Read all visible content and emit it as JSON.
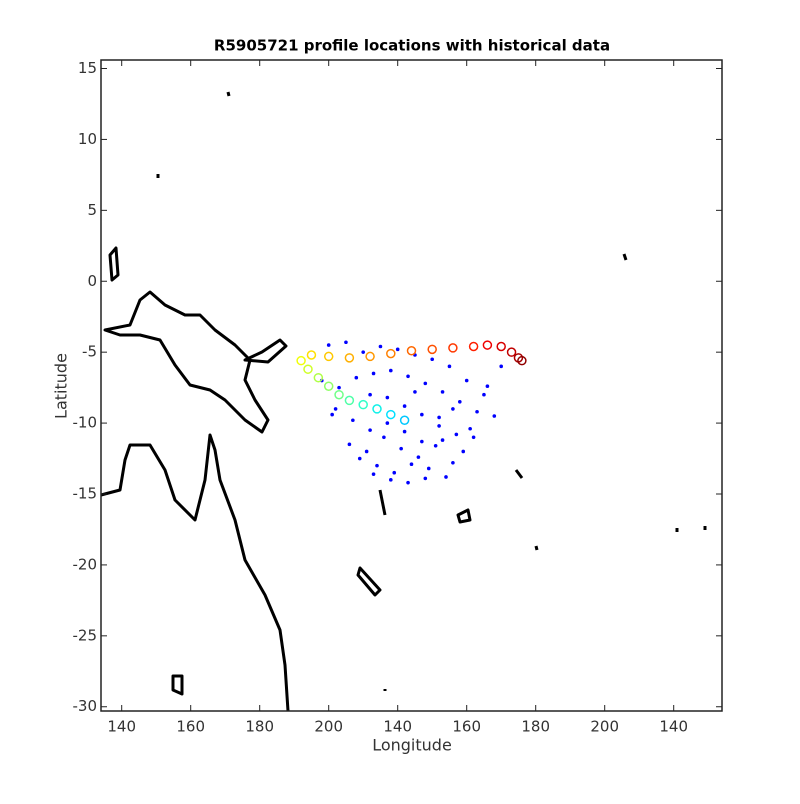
{
  "chart_data": {
    "type": "scatter",
    "title": "R5905721 profile locations with historical data",
    "x_label": "Longitude",
    "y_label": "Latitude",
    "xlim": [
      134,
      314
    ],
    "ylim": [
      -30.3,
      15.6
    ],
    "xticks": [
      140,
      160,
      180,
      200,
      {
        "value": 220,
        "label": "140"
      },
      {
        "value": 240,
        "label": "160"
      },
      {
        "value": 260,
        "label": "180"
      },
      {
        "value": 280,
        "label": "200"
      },
      {
        "value": 300,
        "label": "140"
      }
    ],
    "yticks": [
      -30,
      -25,
      -20,
      -15,
      -10,
      -5,
      0,
      5,
      10,
      15
    ],
    "series": [
      {
        "color": "#0000ff",
        "marker": "dot",
        "x": [
          200,
          205,
          210,
          215,
          220,
          225,
          230,
          235,
          240,
          245,
          198,
          203,
          208,
          213,
          218,
          223,
          228,
          233,
          238,
          243,
          248,
          202,
          207,
          212,
          217,
          222,
          227,
          232,
          237,
          242,
          206,
          211,
          216,
          221,
          226,
          231,
          236,
          241,
          209,
          214,
          219,
          224,
          229,
          234,
          239,
          213,
          218,
          223,
          228,
          233,
          217,
          222,
          227,
          232,
          201,
          246,
          250,
          236,
          212,
          225
        ],
        "y": [
          -4.5,
          -4.3,
          -5,
          -4.6,
          -4.8,
          -5.2,
          -5.5,
          -6,
          -7,
          -8,
          -7,
          -7.5,
          -6.8,
          -6.5,
          -6.3,
          -6.7,
          -7.2,
          -7.8,
          -8.5,
          -9.2,
          -9.5,
          -9,
          -9.8,
          -10.5,
          -8.2,
          -8.8,
          -9.4,
          -10.2,
          -10.8,
          -11,
          -11.5,
          -12,
          -11,
          -11.8,
          -12.4,
          -11.6,
          -12.8,
          -10.4,
          -12.5,
          -13,
          -13.5,
          -12.9,
          -13.2,
          -13.8,
          -12,
          -13.6,
          -14,
          -14.2,
          -13.9,
          -11.2,
          -10,
          -10.6,
          -11.3,
          -9.6,
          -9.4,
          -7.4,
          -6,
          -9,
          -8,
          -7.8
        ]
      },
      {
        "marker": "ring",
        "x": [
          222,
          218,
          214,
          210,
          206,
          203,
          200,
          197,
          194,
          192,
          195,
          200,
          206,
          212,
          218,
          224,
          230,
          236,
          242,
          246,
          250,
          253,
          255,
          256
        ],
        "y": [
          -9.8,
          -9.4,
          -9,
          -8.7,
          -8.4,
          -8,
          -7.4,
          -6.8,
          -6.2,
          -5.6,
          -5.2,
          -5.3,
          -5.4,
          -5.3,
          -5.1,
          -4.9,
          -4.8,
          -4.7,
          -4.6,
          -4.5,
          -4.6,
          -5,
          -5.4,
          -5.6
        ],
        "colors": [
          "#00c8ff",
          "#00e0ff",
          "#10f0e8",
          "#30ffc8",
          "#50ffa8",
          "#70ff88",
          "#90ff68",
          "#b0ff48",
          "#d0ff28",
          "#f0ff08",
          "#ffe000",
          "#ffc800",
          "#ffb000",
          "#ff9800",
          "#ff8000",
          "#ff6800",
          "#ff5000",
          "#ff3800",
          "#ff2000",
          "#f00000",
          "#d80000",
          "#c00000",
          "#a80000",
          "#900000"
        ]
      }
    ]
  }
}
